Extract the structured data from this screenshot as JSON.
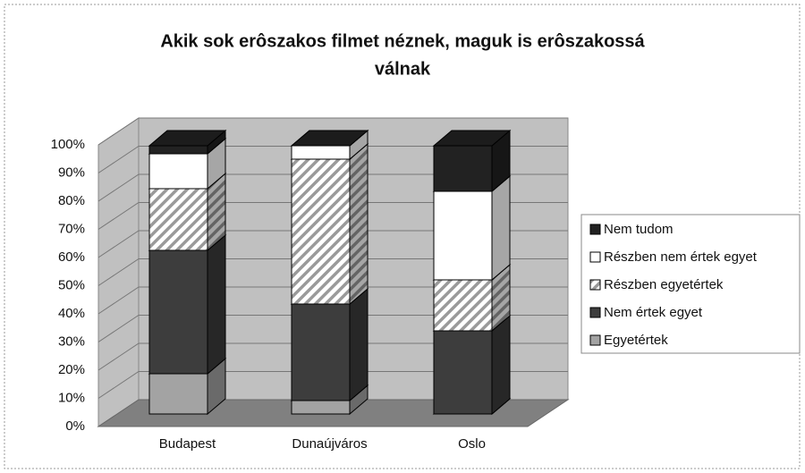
{
  "chart_data": {
    "type": "stacked-bar-3d",
    "title_lines": [
      "Akik sok erôszakos filmet néznek, maguk is erôszakossá",
      "válnak"
    ],
    "categories": [
      "Budapest",
      "Dunaújváros",
      "Oslo"
    ],
    "series": [
      {
        "name": "Egyetértek",
        "color": "#a3a3a3",
        "values": [
          15,
          5,
          0
        ]
      },
      {
        "name": "Nem értek egyet",
        "color": "#3d3d3d",
        "values": [
          46,
          36,
          31
        ]
      },
      {
        "name": "Részben egyetértek",
        "color": "#c8c8c8",
        "pattern": "hatch",
        "values": [
          23,
          54,
          19
        ]
      },
      {
        "name": "Részben nem értek egyet",
        "color": "#ffffff",
        "values": [
          13,
          5,
          33
        ]
      },
      {
        "name": "Nem tudom",
        "color": "#222222",
        "values": [
          3,
          0,
          17
        ]
      }
    ],
    "ylim": [
      0,
      100
    ],
    "yticks": [
      {
        "value": 0,
        "label": "0%"
      },
      {
        "value": 10,
        "label": "10%"
      },
      {
        "value": 20,
        "label": "20%"
      },
      {
        "value": 30,
        "label": "30%"
      },
      {
        "value": 40,
        "label": "40%"
      },
      {
        "value": 50,
        "label": "50%"
      },
      {
        "value": 60,
        "label": "60%"
      },
      {
        "value": 70,
        "label": "70%"
      },
      {
        "value": 80,
        "label": "80%"
      },
      {
        "value": 90,
        "label": "90%"
      },
      {
        "value": 100,
        "label": "100%"
      }
    ],
    "grid": true,
    "legend": "right"
  }
}
